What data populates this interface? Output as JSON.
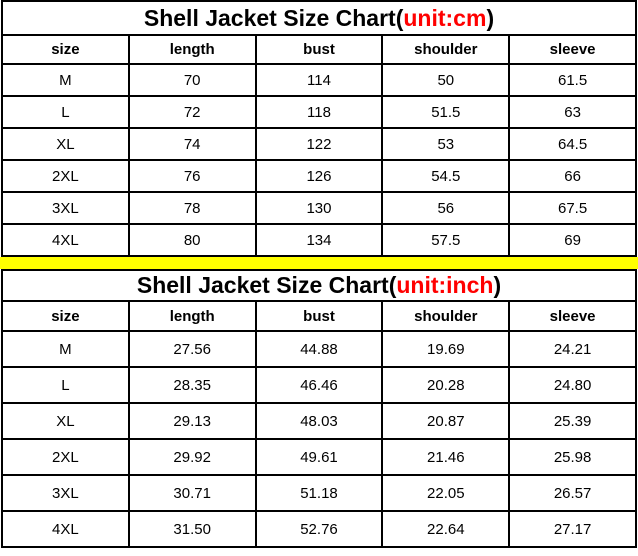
{
  "page": {
    "background": "#ffffff",
    "accent_red": "#ff0000",
    "divider_yellow": "#ffff00",
    "border_black": "#000000"
  },
  "chart_data": [
    {
      "type": "table",
      "title": "Shell Jacket Size Chart(unit:cm)",
      "title_prefix": "Shell Jacket Size Chart(",
      "title_unit": "unit:cm",
      "title_suffix": ")",
      "unit": "cm",
      "headers": [
        "size",
        "length",
        "bust",
        "shoulder",
        "sleeve"
      ],
      "rows": [
        [
          "M",
          "70",
          "114",
          "50",
          "61.5"
        ],
        [
          "L",
          "72",
          "118",
          "51.5",
          "63"
        ],
        [
          "XL",
          "74",
          "122",
          "53",
          "64.5"
        ],
        [
          "2XL",
          "76",
          "126",
          "54.5",
          "66"
        ],
        [
          "3XL",
          "78",
          "130",
          "56",
          "67.5"
        ],
        [
          "4XL",
          "80",
          "134",
          "57.5",
          "69"
        ]
      ]
    },
    {
      "type": "table",
      "title": "Shell Jacket Size Chart(unit:inch)",
      "title_prefix": "Shell Jacket Size Chart(",
      "title_unit": "unit:inch",
      "title_suffix": ")",
      "unit": "inch",
      "headers": [
        "size",
        "length",
        "bust",
        "shoulder",
        "sleeve"
      ],
      "rows": [
        [
          "M",
          "27.56",
          "44.88",
          "19.69",
          "24.21"
        ],
        [
          "L",
          "28.35",
          "46.46",
          "20.28",
          "24.80"
        ],
        [
          "XL",
          "29.13",
          "48.03",
          "20.87",
          "25.39"
        ],
        [
          "2XL",
          "29.92",
          "49.61",
          "21.46",
          "25.98"
        ],
        [
          "3XL",
          "30.71",
          "51.18",
          "22.05",
          "26.57"
        ],
        [
          "4XL",
          "31.50",
          "52.76",
          "22.64",
          "27.17"
        ]
      ]
    }
  ]
}
